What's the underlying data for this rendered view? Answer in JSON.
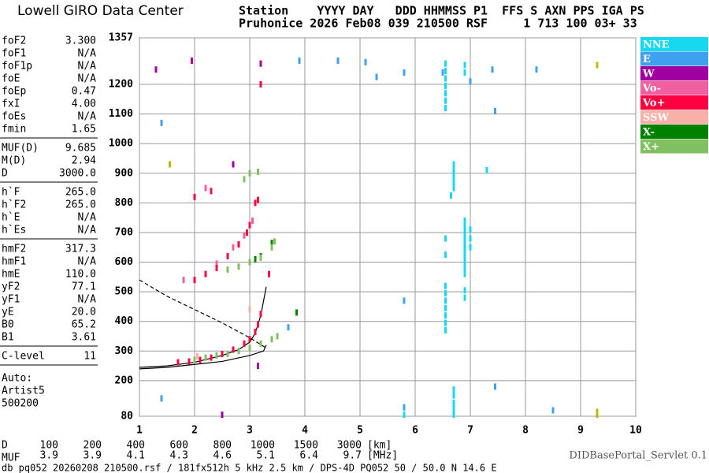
{
  "header": {
    "logo": "Lowell GIRO Data Center",
    "line1": "Station    YYYY DAY   DDD HHMMSS P1  FFS S AXN PPS IGA PS",
    "line2": "Pruhonice 2026 Feb08 039 210500 RSF     1 713 100 03+ 33"
  },
  "params": [
    [
      [
        "foF2",
        "3.300"
      ],
      [
        "foF1",
        "N/A"
      ],
      [
        "foF1p",
        "N/A"
      ],
      [
        "foE",
        "N/A"
      ],
      [
        "foEp",
        "0.47"
      ],
      [
        "fxI",
        "4.00"
      ],
      [
        "foEs",
        "N/A"
      ],
      [
        "fmin",
        "1.65"
      ]
    ],
    [
      [
        "MUF(D)",
        "9.685"
      ],
      [
        "M(D)",
        "2.94"
      ],
      [
        "D",
        "3000.0"
      ]
    ],
    [
      [
        "h`F",
        "265.0"
      ],
      [
        "h`F2",
        "265.0"
      ],
      [
        "h`E",
        "N/A"
      ],
      [
        "h`Es",
        "N/A"
      ]
    ],
    [
      [
        "hmF2",
        "317.3"
      ],
      [
        "hmF1",
        "N/A"
      ],
      [
        "hmE",
        "110.0"
      ],
      [
        "yF2",
        "77.1"
      ],
      [
        "yF1",
        "N/A"
      ],
      [
        "yE",
        "20.0"
      ],
      [
        "B0",
        "65.2"
      ],
      [
        "B1",
        "3.61"
      ]
    ],
    [
      [
        "C-level",
        "11"
      ]
    ]
  ],
  "auto": [
    "Auto:",
    "Artist5",
    "500200"
  ],
  "chart_data": {
    "type": "scatter",
    "xlim": [
      1,
      10
    ],
    "xticks": [
      1,
      2,
      3,
      4,
      5,
      6,
      7,
      8,
      9,
      10
    ],
    "ylim": [
      80,
      1357
    ],
    "yticks": [
      80,
      200,
      300,
      400,
      500,
      600,
      700,
      800,
      900,
      1000,
      1100,
      1200,
      1357
    ],
    "grid": true,
    "series": [
      {
        "name": "NNE",
        "color": "#18d8f0",
        "x": [
          6.55,
          6.55,
          6.55,
          6.55,
          6.55,
          6.55,
          6.55,
          6.55,
          6.55,
          6.55,
          6.55,
          6.55,
          6.55,
          6.55,
          6.55,
          6.55,
          6.9,
          6.9,
          6.9,
          6.9,
          6.9,
          6.9,
          6.9,
          6.9,
          6.9,
          6.9,
          7.0,
          7.0,
          7.0,
          6.7,
          6.7,
          6.7,
          6.7,
          6.7,
          6.9,
          6.9,
          6.9,
          6.9,
          6.7,
          6.7,
          6.7,
          6.7,
          6.7,
          6.7,
          5.8,
          7.3,
          6.65
        ],
        "y": [
          1120,
          1145,
          1170,
          1195,
          1220,
          1245,
          1270,
          370,
          395,
          420,
          445,
          470,
          495,
          520,
          625,
          680,
          560,
          580,
          600,
          620,
          640,
          660,
          680,
          700,
          720,
          740,
          650,
          680,
          710,
          850,
          870,
          890,
          910,
          930,
          1240,
          1265,
          480,
          505,
          100,
          125,
          150,
          170,
          85,
          110,
          85,
          910,
          825
        ]
      },
      {
        "name": "E",
        "color": "#40a0f0",
        "x": [
          3.9,
          4.6,
          5.1,
          5.3,
          5.8,
          5.8,
          6.5,
          7.0,
          7.4,
          8.2,
          5.8,
          1.4,
          7.45,
          7.45,
          1.4,
          3.7,
          8.5
        ],
        "y": [
          1280,
          1280,
          1275,
          1225,
          1240,
          470,
          1240,
          1210,
          1250,
          1250,
          110,
          1070,
          1110,
          180,
          140,
          380,
          100
        ]
      },
      {
        "name": "W",
        "color": "#a000a0",
        "x": [
          1.3,
          1.95,
          2.7,
          3.2,
          3.15,
          2.5
        ],
        "y": [
          1250,
          1280,
          930,
          1270,
          250,
          85
        ]
      },
      {
        "name": "Vo-",
        "color": "#f060a0",
        "x": [
          1.8,
          2.4,
          2.7,
          2.2,
          2.9,
          3.05
        ],
        "y": [
          540,
          595,
          650,
          850,
          690,
          740
        ]
      },
      {
        "name": "Vo+",
        "color": "#ff0040",
        "x": [
          1.7,
          1.9,
          2.1,
          2.3,
          2.5,
          2.7,
          2.9,
          3.0,
          3.1,
          3.15,
          3.2,
          2.0,
          2.2,
          2.4,
          2.6,
          2.8,
          2.95,
          3.0,
          2.0,
          2.3,
          3.1,
          3.15,
          3.35,
          3.2
        ],
        "y": [
          262,
          265,
          270,
          278,
          290,
          305,
          325,
          340,
          365,
          390,
          425,
          540,
          560,
          580,
          620,
          660,
          700,
          725,
          820,
          840,
          800,
          810,
          560,
          1200
        ]
      },
      {
        "name": "SSW",
        "color": "#f8b0a8",
        "x": [
          2.05,
          3.0
        ],
        "y": [
          283,
          440
        ]
      },
      {
        "name": "X-",
        "color": "#008000",
        "x": [
          3.2,
          3.4,
          3.85,
          3.1
        ],
        "y": [
          620,
          665,
          430,
          610
        ]
      },
      {
        "name": "X+",
        "color": "#80c060",
        "x": [
          2.0,
          2.2,
          2.4,
          2.6,
          2.8,
          3.0,
          3.2,
          3.4,
          3.5,
          2.6,
          2.8,
          3.0,
          3.2,
          3.4,
          3.45,
          2.9,
          3.0,
          3.15
        ],
        "y": [
          270,
          278,
          285,
          290,
          300,
          310,
          325,
          340,
          350,
          575,
          585,
          600,
          615,
          650,
          670,
          880,
          900,
          905
        ]
      },
      {
        "color": "#c0b800",
        "x": [
          9.3,
          9.3,
          9.3,
          1.55
        ],
        "y": [
          1265,
          95,
          85,
          930
        ]
      }
    ],
    "lines": [
      {
        "style": "solid",
        "x": [
          1.0,
          1.5,
          2.0,
          2.5,
          2.8,
          3.0,
          3.1,
          3.2,
          3.3
        ],
        "y": [
          245,
          250,
          262,
          285,
          305,
          330,
          360,
          420,
          517
        ]
      },
      {
        "style": "solid",
        "x": [
          1.0,
          1.5,
          2.0,
          2.5,
          3.0,
          3.25,
          3.3
        ],
        "y": [
          240,
          245,
          255,
          265,
          285,
          300,
          320
        ]
      },
      {
        "style": "dashed",
        "x": [
          1.0,
          1.5,
          2.0,
          2.5,
          3.0,
          3.3
        ],
        "y": [
          540,
          485,
          440,
          395,
          345,
          310
        ]
      }
    ]
  },
  "footer": {
    "d_label": "D",
    "d_values": [
      "100",
      "200",
      "400",
      "600",
      "800",
      "1000",
      "1500",
      "3000"
    ],
    "d_unit": "[km]",
    "muf_label": "MUF",
    "muf_values": [
      "3.9",
      "3.9",
      "4.1",
      "4.3",
      "4.6",
      "5.1",
      "6.4",
      "9.7"
    ],
    "muf_unit": "[MHz]",
    "info": "db pq052 20260208 210500.rsf / 181fx512h 5 kHz 2.5 km / DPS-4D PQ052 50 / 50.0 N 14.6 E",
    "servlet": "DIDBasePortal_Servlet 0.1"
  }
}
